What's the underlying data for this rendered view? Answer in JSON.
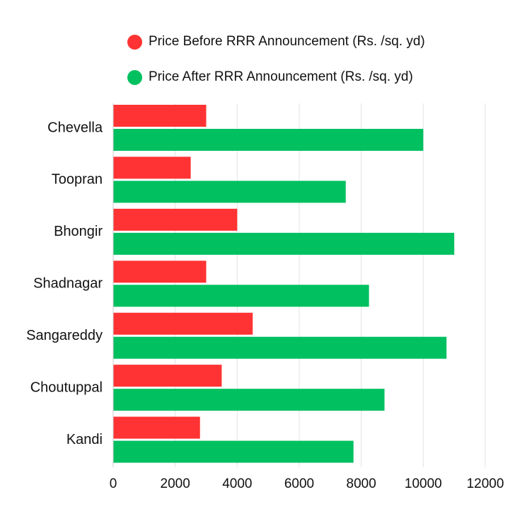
{
  "chart_data": {
    "type": "bar",
    "orientation": "horizontal",
    "categories": [
      "Chevella",
      "Toopran",
      "Bhongir",
      "Shadnagar",
      "Sangareddy",
      "Choutuppal",
      "Kandi"
    ],
    "series": [
      {
        "name": "Price Before RRR Announcement (Rs. /sq. yd)",
        "color": "#ff3333",
        "values": [
          3000,
          2500,
          4000,
          3000,
          4500,
          3500,
          2800
        ]
      },
      {
        "name": "Price After RRR Announcement (Rs. /sq. yd)",
        "color": "#00c060",
        "values": [
          10000,
          7500,
          11000,
          8250,
          10750,
          8750,
          7750
        ]
      }
    ],
    "xlim": [
      0,
      12000
    ],
    "xticks": [
      "0",
      "2000",
      "4000",
      "6000",
      "8000",
      "10000",
      "12000"
    ],
    "legend_position": "top",
    "grid": "vertical"
  }
}
